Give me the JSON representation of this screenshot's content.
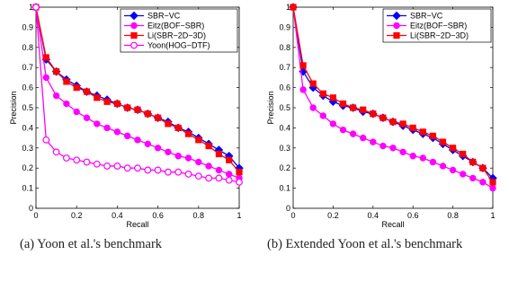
{
  "captions": {
    "a": "(a)  Yoon et al.'s benchmark",
    "b": "(b)  Extended  Yoon  et  al.'s benchmark"
  },
  "chart_data": [
    {
      "type": "line",
      "xlabel": "Recall",
      "ylabel": "Precision",
      "xlim": [
        0,
        1
      ],
      "ylim": [
        0,
        1
      ],
      "xticks": [
        "0",
        "0.2",
        "0.4",
        "0.6",
        "0.8",
        "1"
      ],
      "yticks": [
        "0",
        "0.1",
        "0.2",
        "0.3",
        "0.4",
        "0.5",
        "0.6",
        "0.7",
        "0.8",
        "0.9",
        "1"
      ],
      "grid": false,
      "legend_position": "top-right",
      "series": [
        {
          "name": "SBR−VC",
          "color": "#0000ff",
          "marker": "diamond",
          "x": [
            0,
            0.05,
            0.1,
            0.15,
            0.2,
            0.25,
            0.3,
            0.35,
            0.4,
            0.45,
            0.5,
            0.55,
            0.6,
            0.65,
            0.7,
            0.75,
            0.8,
            0.85,
            0.9,
            0.95,
            1
          ],
          "y": [
            1,
            0.74,
            0.68,
            0.64,
            0.61,
            0.58,
            0.56,
            0.54,
            0.52,
            0.5,
            0.49,
            0.47,
            0.45,
            0.43,
            0.4,
            0.38,
            0.35,
            0.32,
            0.29,
            0.26,
            0.2
          ]
        },
        {
          "name": "Eitz(BOF−SBR)",
          "color": "#ff00ff",
          "marker": "circle-filled",
          "x": [
            0,
            0.05,
            0.1,
            0.15,
            0.2,
            0.25,
            0.3,
            0.35,
            0.4,
            0.45,
            0.5,
            0.55,
            0.6,
            0.65,
            0.7,
            0.75,
            0.8,
            0.85,
            0.9,
            0.95,
            1
          ],
          "y": [
            1,
            0.65,
            0.56,
            0.52,
            0.48,
            0.45,
            0.42,
            0.4,
            0.38,
            0.36,
            0.34,
            0.32,
            0.3,
            0.28,
            0.26,
            0.25,
            0.23,
            0.21,
            0.19,
            0.17,
            0.15
          ]
        },
        {
          "name": "Li(SBR−2D−3D)",
          "color": "#ff0000",
          "marker": "square",
          "x": [
            0,
            0.05,
            0.1,
            0.15,
            0.2,
            0.25,
            0.3,
            0.35,
            0.4,
            0.45,
            0.5,
            0.55,
            0.6,
            0.65,
            0.7,
            0.75,
            0.8,
            0.85,
            0.9,
            0.95,
            1
          ],
          "y": [
            1,
            0.75,
            0.68,
            0.63,
            0.6,
            0.58,
            0.55,
            0.53,
            0.52,
            0.5,
            0.49,
            0.47,
            0.45,
            0.42,
            0.4,
            0.37,
            0.34,
            0.31,
            0.27,
            0.24,
            0.18
          ]
        },
        {
          "name": "Yoon(HOG−DTF)",
          "color": "#ff00ff",
          "marker": "circle-open",
          "x": [
            0,
            0.05,
            0.1,
            0.15,
            0.2,
            0.25,
            0.3,
            0.35,
            0.4,
            0.45,
            0.5,
            0.55,
            0.6,
            0.65,
            0.7,
            0.75,
            0.8,
            0.85,
            0.9,
            0.95,
            1
          ],
          "y": [
            1,
            0.34,
            0.28,
            0.25,
            0.24,
            0.23,
            0.22,
            0.21,
            0.21,
            0.2,
            0.2,
            0.19,
            0.19,
            0.18,
            0.18,
            0.17,
            0.16,
            0.15,
            0.15,
            0.14,
            0.13
          ]
        }
      ]
    },
    {
      "type": "line",
      "xlabel": "Recall",
      "ylabel": "Precision",
      "xlim": [
        0,
        1
      ],
      "ylim": [
        0,
        1
      ],
      "xticks": [
        "0",
        "0.2",
        "0.4",
        "0.6",
        "0.8",
        "1"
      ],
      "yticks": [
        "0",
        "0.1",
        "0.2",
        "0.3",
        "0.4",
        "0.5",
        "0.6",
        "0.7",
        "0.8",
        "0.9",
        "1"
      ],
      "grid": false,
      "legend_position": "top-right",
      "series": [
        {
          "name": "SBR−VC",
          "color": "#0000ff",
          "marker": "diamond",
          "x": [
            0,
            0.05,
            0.1,
            0.15,
            0.2,
            0.25,
            0.3,
            0.35,
            0.4,
            0.45,
            0.5,
            0.55,
            0.6,
            0.65,
            0.7,
            0.75,
            0.8,
            0.85,
            0.9,
            0.95,
            1
          ],
          "y": [
            1,
            0.68,
            0.6,
            0.56,
            0.53,
            0.51,
            0.5,
            0.48,
            0.47,
            0.45,
            0.43,
            0.41,
            0.39,
            0.37,
            0.35,
            0.32,
            0.29,
            0.26,
            0.23,
            0.2,
            0.15
          ]
        },
        {
          "name": "Eitz(BOF−SBR)",
          "color": "#ff00ff",
          "marker": "circle-filled",
          "x": [
            0,
            0.05,
            0.1,
            0.15,
            0.2,
            0.25,
            0.3,
            0.35,
            0.4,
            0.45,
            0.5,
            0.55,
            0.6,
            0.65,
            0.7,
            0.75,
            0.8,
            0.85,
            0.9,
            0.95,
            1
          ],
          "y": [
            1,
            0.59,
            0.5,
            0.46,
            0.42,
            0.39,
            0.37,
            0.35,
            0.33,
            0.31,
            0.3,
            0.28,
            0.26,
            0.25,
            0.23,
            0.21,
            0.19,
            0.17,
            0.15,
            0.13,
            0.1
          ]
        },
        {
          "name": "Li(SBR−2D−3D)",
          "color": "#ff0000",
          "marker": "square",
          "x": [
            0,
            0.05,
            0.1,
            0.15,
            0.2,
            0.25,
            0.3,
            0.35,
            0.4,
            0.45,
            0.5,
            0.55,
            0.6,
            0.65,
            0.7,
            0.75,
            0.8,
            0.85,
            0.9,
            0.95,
            1
          ],
          "y": [
            1,
            0.71,
            0.62,
            0.57,
            0.55,
            0.52,
            0.5,
            0.49,
            0.47,
            0.45,
            0.43,
            0.42,
            0.4,
            0.38,
            0.36,
            0.33,
            0.3,
            0.27,
            0.23,
            0.2,
            0.13
          ]
        }
      ]
    }
  ]
}
